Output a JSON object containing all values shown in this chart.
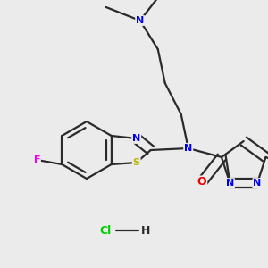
{
  "bg_color": "#ebebeb",
  "bond_color": "#2a2a2a",
  "bond_width": 1.6,
  "dbo": 0.018,
  "atom_colors": {
    "N": "#0000ee",
    "S": "#b8b800",
    "O": "#ee0000",
    "F": "#ee00ee",
    "C": "#2a2a2a",
    "Cl": "#00cc00",
    "H": "#2a2a2a"
  },
  "font_size": 8.5
}
